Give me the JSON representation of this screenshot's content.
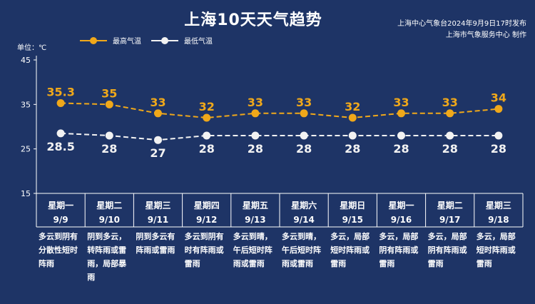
{
  "header": {
    "title": "上海10天天气趋势",
    "credit_line1": "上海中心气象台2024年9月9日17时发布",
    "credit_line2": "上海市气象服务中心 制作"
  },
  "unit_label": "单位：℃",
  "legend": {
    "high": "最高气温",
    "low": "最低气温"
  },
  "colors": {
    "background": "#1e3466",
    "high": "#f0a81a",
    "low": "#f2f2f2",
    "axis": "#ffffff"
  },
  "days": [
    {
      "weekday": "星期一",
      "date": "9/9",
      "desc": "多云到阴有分散性短时阵雨"
    },
    {
      "weekday": "星期二",
      "date": "9/10",
      "desc": "阴到多云，转阵雨或雷雨，局部暴雨"
    },
    {
      "weekday": "星期三",
      "date": "9/11",
      "desc": "阴到多云有阵雨或雷雨"
    },
    {
      "weekday": "星期四",
      "date": "9/12",
      "desc": "多云到阴有时有阵雨或雷雨"
    },
    {
      "weekday": "星期五",
      "date": "9/13",
      "desc": "多云到晴，午后短时阵雨或雷雨"
    },
    {
      "weekday": "星期六",
      "date": "9/14",
      "desc": "多云到晴，午后短时阵雨或雷雨"
    },
    {
      "weekday": "星期日",
      "date": "9/15",
      "desc": "多云，局部短时阵雨或雷雨"
    },
    {
      "weekday": "星期一",
      "date": "9/16",
      "desc": "多云，局部阴有阵雨或雷雨"
    },
    {
      "weekday": "星期二",
      "date": "9/17",
      "desc": "多云，局部阴有阵雨或雷雨"
    },
    {
      "weekday": "星期三",
      "date": "9/18",
      "desc": "多云，局部短时阵雨或雷雨"
    }
  ],
  "chart_data": {
    "type": "line",
    "title": "上海10天天气趋势",
    "ylabel": "单位：℃",
    "ylim": [
      15,
      45
    ],
    "yticks": [
      15,
      25,
      35,
      45
    ],
    "categories": [
      "9/9",
      "9/10",
      "9/11",
      "9/12",
      "9/13",
      "9/14",
      "9/15",
      "9/16",
      "9/17",
      "9/18"
    ],
    "series": [
      {
        "name": "最高气温",
        "values": [
          35.3,
          35,
          33,
          32,
          33,
          33,
          32,
          33,
          33,
          34
        ],
        "labels": [
          "35.3",
          "35",
          "33",
          "32",
          "33",
          "33",
          "32",
          "33",
          "33",
          "34"
        ]
      },
      {
        "name": "最低气温",
        "values": [
          28.5,
          28,
          27,
          28,
          28,
          28,
          28,
          28,
          28,
          28
        ],
        "labels": [
          "28.5",
          "28",
          "27",
          "28",
          "28",
          "28",
          "28",
          "28",
          "28",
          "28"
        ]
      }
    ],
    "grid": false,
    "legend_position": "top-left",
    "line_style": "dashed"
  }
}
